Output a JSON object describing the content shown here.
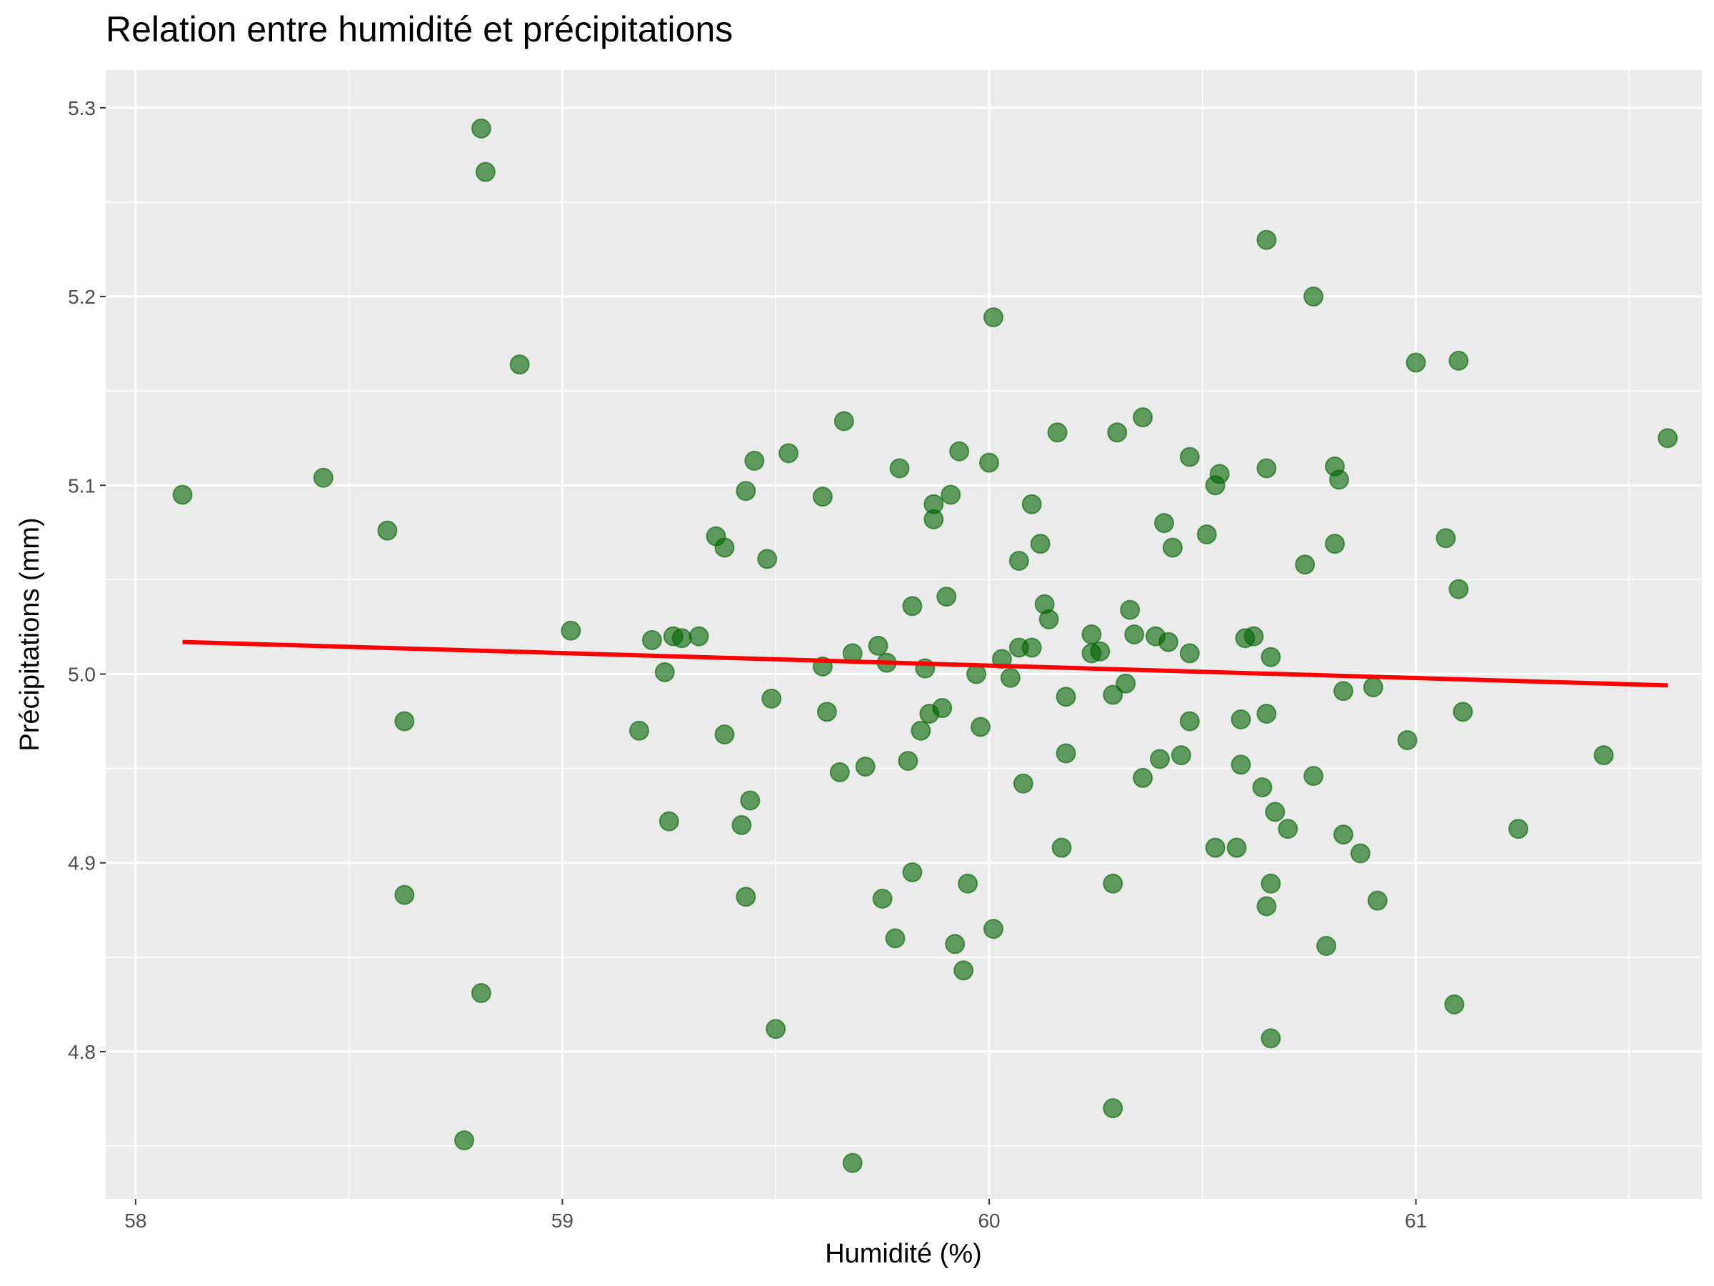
{
  "chart_data": {
    "type": "scatter",
    "title": "Relation entre humidité et précipitations",
    "xlabel": "Humidité (%)",
    "ylabel": "Précipitations (mm)",
    "xlim": [
      57.93,
      61.67
    ],
    "ylim": [
      4.722,
      5.32
    ],
    "x_ticks": [
      58,
      59,
      60,
      61
    ],
    "x_tick_labels": [
      "58",
      "59",
      "60",
      "61"
    ],
    "y_ticks": [
      4.8,
      4.9,
      5.0,
      5.1,
      5.2,
      5.3
    ],
    "y_tick_labels": [
      "4.8",
      "4.9",
      "5.0",
      "5.1",
      "5.2",
      "5.3"
    ],
    "grid": true,
    "legend": "none",
    "colors": {
      "points": "#006400",
      "trend_line": "#ff0000",
      "panel_background": "#ebebeb",
      "grid": "#ffffff"
    },
    "series": [
      {
        "points": [
          [
            58.11,
            5.095
          ],
          [
            58.44,
            5.104
          ],
          [
            58.59,
            5.076
          ],
          [
            58.63,
            4.975
          ],
          [
            58.63,
            4.883
          ],
          [
            58.81,
            5.289
          ],
          [
            58.82,
            5.266
          ],
          [
            58.81,
            4.831
          ],
          [
            58.77,
            4.753
          ],
          [
            58.9,
            5.164
          ],
          [
            59.02,
            5.023
          ],
          [
            59.18,
            4.97
          ],
          [
            59.21,
            5.018
          ],
          [
            59.24,
            5.001
          ],
          [
            59.26,
            5.02
          ],
          [
            59.28,
            5.019
          ],
          [
            59.32,
            5.02
          ],
          [
            59.25,
            4.922
          ],
          [
            59.36,
            5.073
          ],
          [
            59.38,
            5.067
          ],
          [
            59.38,
            4.968
          ],
          [
            59.42,
            4.92
          ],
          [
            59.43,
            5.097
          ],
          [
            59.44,
            4.933
          ],
          [
            59.43,
            4.882
          ],
          [
            59.45,
            5.113
          ],
          [
            59.48,
            5.061
          ],
          [
            59.49,
            4.987
          ],
          [
            59.5,
            4.812
          ],
          [
            59.53,
            5.117
          ],
          [
            59.61,
            5.094
          ],
          [
            59.61,
            5.004
          ],
          [
            59.62,
            4.98
          ],
          [
            59.65,
            4.948
          ],
          [
            59.66,
            5.134
          ],
          [
            59.68,
            5.011
          ],
          [
            59.68,
            4.741
          ],
          [
            59.71,
            4.951
          ],
          [
            59.74,
            5.015
          ],
          [
            59.75,
            4.881
          ],
          [
            59.76,
            5.006
          ],
          [
            59.78,
            4.86
          ],
          [
            59.79,
            5.109
          ],
          [
            59.81,
            4.954
          ],
          [
            59.82,
            5.036
          ],
          [
            59.82,
            4.895
          ],
          [
            59.84,
            4.97
          ],
          [
            59.85,
            5.003
          ],
          [
            59.86,
            4.979
          ],
          [
            59.87,
            5.09
          ],
          [
            59.87,
            5.082
          ],
          [
            59.89,
            4.982
          ],
          [
            59.9,
            5.041
          ],
          [
            59.91,
            5.095
          ],
          [
            59.92,
            4.857
          ],
          [
            59.93,
            5.118
          ],
          [
            59.94,
            4.843
          ],
          [
            59.95,
            4.889
          ],
          [
            59.97,
            5.0
          ],
          [
            59.98,
            4.972
          ],
          [
            60.0,
            5.112
          ],
          [
            60.01,
            5.189
          ],
          [
            60.01,
            4.865
          ],
          [
            60.03,
            5.008
          ],
          [
            60.05,
            4.998
          ],
          [
            60.07,
            5.014
          ],
          [
            60.07,
            5.06
          ],
          [
            60.08,
            4.942
          ],
          [
            60.1,
            5.09
          ],
          [
            60.1,
            5.014
          ],
          [
            60.12,
            5.069
          ],
          [
            60.13,
            5.037
          ],
          [
            60.14,
            5.029
          ],
          [
            60.16,
            5.128
          ],
          [
            60.17,
            4.908
          ],
          [
            60.18,
            4.988
          ],
          [
            60.18,
            4.958
          ],
          [
            60.24,
            5.021
          ],
          [
            60.24,
            5.011
          ],
          [
            60.26,
            5.012
          ],
          [
            60.29,
            4.989
          ],
          [
            60.29,
            4.889
          ],
          [
            60.29,
            4.77
          ],
          [
            60.3,
            5.128
          ],
          [
            60.32,
            4.995
          ],
          [
            60.33,
            5.034
          ],
          [
            60.34,
            5.021
          ],
          [
            60.36,
            5.136
          ],
          [
            60.36,
            4.945
          ],
          [
            60.39,
            5.02
          ],
          [
            60.4,
            4.955
          ],
          [
            60.41,
            5.08
          ],
          [
            60.42,
            5.017
          ],
          [
            60.43,
            5.067
          ],
          [
            60.45,
            4.957
          ],
          [
            60.47,
            5.011
          ],
          [
            60.47,
            4.975
          ],
          [
            60.47,
            5.115
          ],
          [
            60.51,
            5.074
          ],
          [
            60.53,
            4.908
          ],
          [
            60.53,
            5.1
          ],
          [
            60.54,
            5.106
          ],
          [
            60.58,
            4.908
          ],
          [
            60.59,
            4.976
          ],
          [
            60.59,
            4.952
          ],
          [
            60.6,
            5.019
          ],
          [
            60.62,
            5.02
          ],
          [
            60.64,
            4.94
          ],
          [
            60.65,
            5.109
          ],
          [
            60.65,
            5.23
          ],
          [
            60.65,
            4.979
          ],
          [
            60.66,
            5.009
          ],
          [
            60.65,
            4.877
          ],
          [
            60.66,
            4.807
          ],
          [
            60.66,
            4.889
          ],
          [
            60.67,
            4.927
          ],
          [
            60.7,
            4.918
          ],
          [
            60.74,
            5.058
          ],
          [
            60.76,
            5.2
          ],
          [
            60.76,
            4.946
          ],
          [
            60.79,
            4.856
          ],
          [
            60.81,
            5.11
          ],
          [
            60.82,
            5.103
          ],
          [
            60.81,
            5.069
          ],
          [
            60.83,
            4.991
          ],
          [
            60.83,
            4.915
          ],
          [
            60.87,
            4.905
          ],
          [
            60.9,
            4.993
          ],
          [
            60.91,
            4.88
          ],
          [
            60.98,
            4.965
          ],
          [
            61.0,
            5.165
          ],
          [
            61.07,
            5.072
          ],
          [
            61.09,
            4.825
          ],
          [
            61.1,
            5.166
          ],
          [
            61.1,
            5.045
          ],
          [
            61.11,
            4.98
          ],
          [
            61.24,
            4.918
          ],
          [
            61.44,
            4.957
          ],
          [
            61.59,
            5.125
          ]
        ]
      }
    ],
    "trend_line": {
      "x": [
        58.11,
        61.59
      ],
      "y": [
        5.017,
        4.994
      ]
    }
  }
}
